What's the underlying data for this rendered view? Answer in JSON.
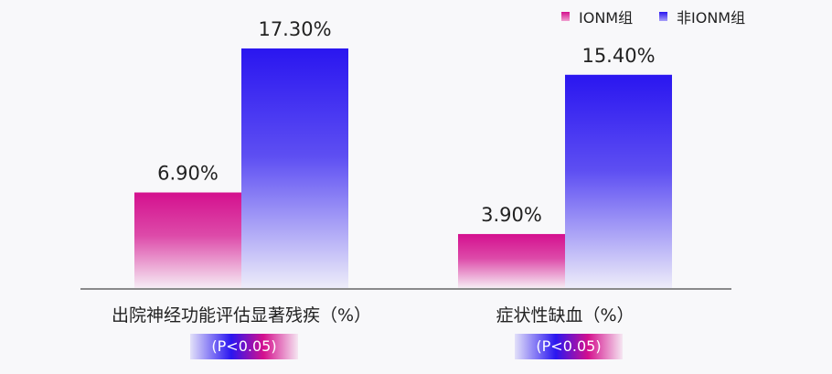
{
  "chart_data": {
    "type": "bar",
    "categories": [
      "出院神经功能评估显著残疾（%）",
      "症状性缺血（%）"
    ],
    "series": [
      {
        "name": "IONM组",
        "values": [
          6.9,
          3.9
        ],
        "labels": [
          "6.90%",
          "3.90%"
        ],
        "color": "#d4108e"
      },
      {
        "name": "非IONM组",
        "values": [
          17.3,
          15.4
        ],
        "labels": [
          "17.30%",
          "15.40%"
        ],
        "color": "#2a16f0"
      }
    ],
    "annotations": [
      "(P<0.05)",
      "(P<0.05)"
    ],
    "legend_position": "top-right",
    "grid": false,
    "ylim": [
      0,
      20
    ]
  }
}
